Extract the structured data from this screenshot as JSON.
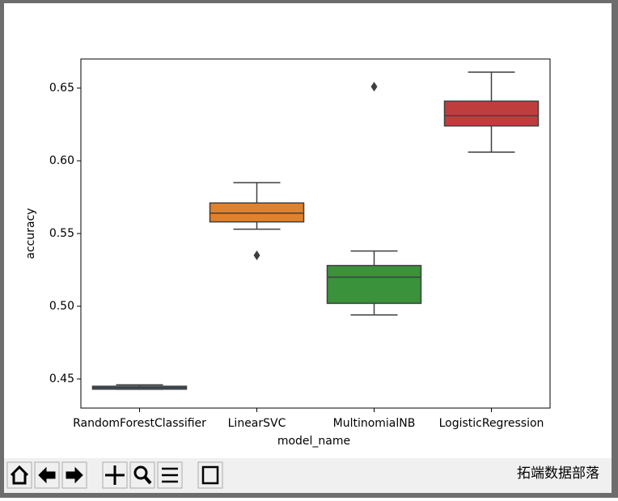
{
  "chart_data": {
    "type": "box",
    "x_label": "model_name",
    "y_label": "accuracy",
    "categories": [
      "RandomForestClassifier",
      "LinearSVC",
      "MultinomialNB",
      "LogisticRegression"
    ],
    "colors": [
      "#3274a1",
      "#e1812c",
      "#3a923a",
      "#c03d3e"
    ],
    "boxes": [
      {
        "whislo": 0.443,
        "q1": 0.443,
        "med": 0.444,
        "q3": 0.445,
        "whishi": 0.446,
        "fliers": []
      },
      {
        "whislo": 0.553,
        "q1": 0.558,
        "med": 0.564,
        "q3": 0.571,
        "whishi": 0.585,
        "fliers": [
          0.535
        ]
      },
      {
        "whislo": 0.494,
        "q1": 0.502,
        "med": 0.52,
        "q3": 0.528,
        "whishi": 0.538,
        "fliers": [
          0.651
        ]
      },
      {
        "whislo": 0.606,
        "q1": 0.624,
        "med": 0.631,
        "q3": 0.641,
        "whishi": 0.661,
        "fliers": []
      }
    ],
    "ylim": [
      0.43,
      0.67
    ],
    "yticks": [
      0.45,
      {
        "value": 0.5,
        "label": "0.50"
      },
      0.55,
      {
        "value": 0.6,
        "label": "0.60"
      },
      0.65
    ]
  },
  "watermark": "拓端数据部落"
}
